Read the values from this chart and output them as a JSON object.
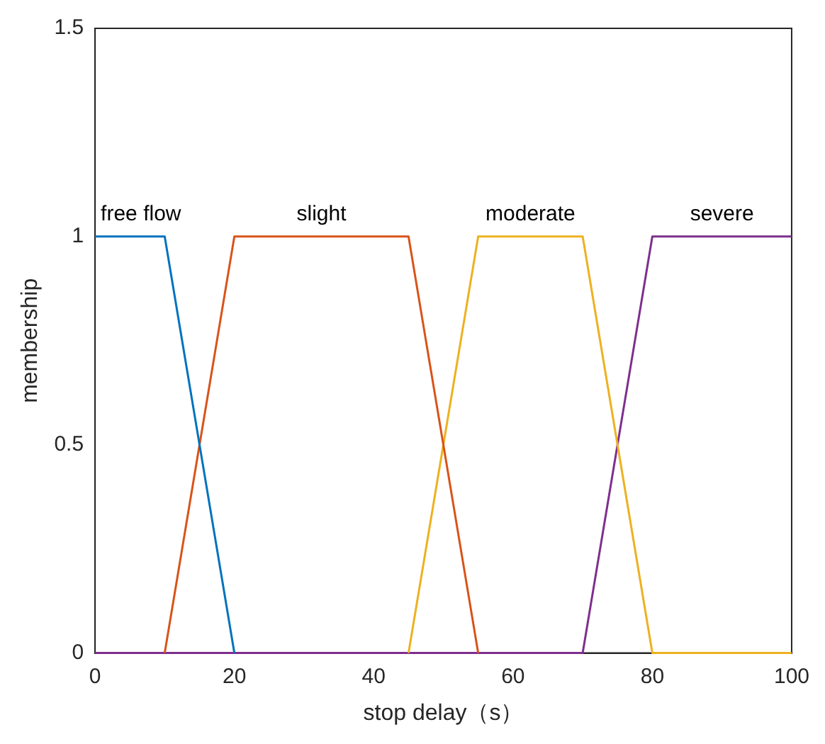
{
  "chart_data": {
    "type": "line",
    "xlabel": "stop delay（s）",
    "ylabel": "membership",
    "xlim": [
      0,
      100
    ],
    "xticks": [
      0,
      20,
      40,
      60,
      80,
      100
    ],
    "ylim": [
      0,
      1.5
    ],
    "yticks": [
      0,
      0.5,
      1,
      1.5
    ],
    "grid": false,
    "legend": false,
    "marker": "none",
    "line_style": "solid",
    "series": [
      {
        "name": "free flow",
        "color": "#0072bd",
        "x": [
          0,
          10,
          20
        ],
        "values": [
          1,
          1,
          0
        ]
      },
      {
        "name": "slight",
        "color": "#d95319",
        "x": [
          10,
          20,
          45,
          55
        ],
        "values": [
          0,
          1,
          1,
          0
        ]
      },
      {
        "name": "moderate",
        "color": "#edb120",
        "x": [
          45,
          55,
          70,
          80,
          100
        ],
        "values": [
          0,
          1,
          1,
          0,
          0
        ]
      },
      {
        "name": "severe",
        "color": "#7e2f8e",
        "x": [
          0,
          70,
          80,
          100
        ],
        "values": [
          0,
          0,
          1,
          1
        ]
      }
    ]
  }
}
